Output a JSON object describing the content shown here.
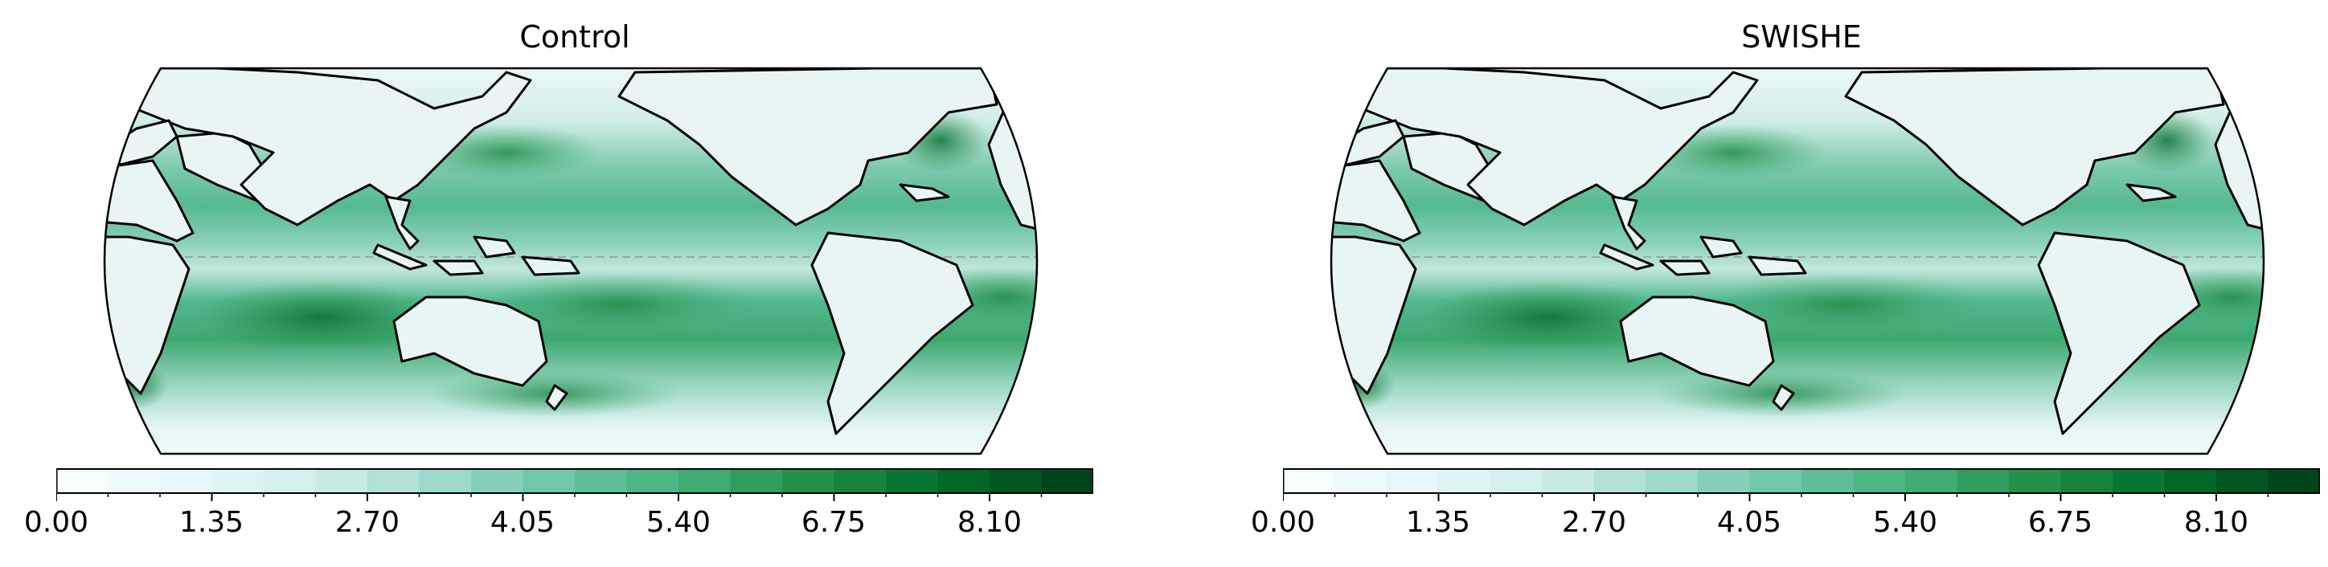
{
  "panels": [
    {
      "title": "Control"
    },
    {
      "title": "SWISHE"
    }
  ],
  "colorbar": {
    "ticks": [
      "0.00",
      "1.35",
      "2.70",
      "4.05",
      "5.40",
      "6.75",
      "8.10"
    ],
    "tick_values": [
      0.0,
      1.35,
      2.7,
      4.05,
      5.4,
      6.75,
      8.1
    ],
    "range": [
      0.0,
      9.0
    ],
    "levels": 20,
    "colormap": "BuGn",
    "colors": [
      "#f7fcfd",
      "#e5f5f9",
      "#ccece6",
      "#99d8c9",
      "#66c2a4",
      "#41ae76",
      "#238b45",
      "#006d2c",
      "#00441b"
    ]
  },
  "map": {
    "projection": "Robinson-like, Pacific-centered",
    "equator_line": "dashed gray"
  }
}
